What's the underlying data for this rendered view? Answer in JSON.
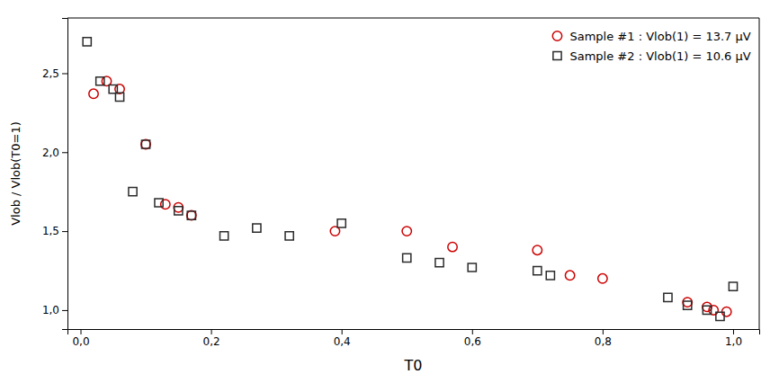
{
  "chart_data": {
    "type": "scatter",
    "xlabel": "T0",
    "ylabel": "Vlob / Vlob(T0=1)",
    "series": [
      {
        "name": "Sample #1 : Vlob(1) = 13.7 μV",
        "color": "#cc0000",
        "marker": "circle",
        "x": [
          0.02,
          0.04,
          0.06,
          0.1,
          0.13,
          0.15,
          0.17,
          0.39,
          0.5,
          0.57,
          0.7,
          0.75,
          0.8,
          0.93,
          0.96,
          0.97,
          0.99
        ],
        "values": [
          2.37,
          2.45,
          2.4,
          2.05,
          1.67,
          1.65,
          1.6,
          1.5,
          1.5,
          1.4,
          1.38,
          1.22,
          1.2,
          1.05,
          1.02,
          1.0,
          0.99
        ]
      },
      {
        "name": "Sample #2 : Vlob(1) = 10.6 μV",
        "color": "#2b2b2b",
        "marker": "square",
        "x": [
          0.01,
          0.03,
          0.05,
          0.06,
          0.08,
          0.1,
          0.12,
          0.15,
          0.17,
          0.22,
          0.27,
          0.32,
          0.4,
          0.5,
          0.55,
          0.6,
          0.7,
          0.72,
          0.9,
          0.93,
          0.96,
          0.98,
          1.0
        ],
        "values": [
          2.7,
          2.45,
          2.4,
          2.35,
          1.75,
          2.05,
          1.68,
          1.63,
          1.6,
          1.47,
          1.52,
          1.47,
          1.55,
          1.33,
          1.3,
          1.27,
          1.25,
          1.22,
          1.08,
          1.03,
          1.0,
          0.96,
          1.15
        ]
      }
    ],
    "xlim": [
      -0.02,
      1.04
    ],
    "ylim": [
      0.88,
      2.85
    ],
    "xticks": [
      {
        "value": 0.0,
        "label": "0,0"
      },
      {
        "value": 0.2,
        "label": "0,2"
      },
      {
        "value": 0.4,
        "label": "0,4"
      },
      {
        "value": 0.6,
        "label": "0,6"
      },
      {
        "value": 0.8,
        "label": "0,8"
      },
      {
        "value": 1.0,
        "label": "1,0"
      }
    ],
    "yticks": [
      {
        "value": 1.0,
        "label": "1,0"
      },
      {
        "value": 1.5,
        "label": "1,5"
      },
      {
        "value": 2.0,
        "label": "2,0"
      },
      {
        "value": 2.5,
        "label": "2,5"
      }
    ],
    "grid": false,
    "legend": "upper right"
  }
}
